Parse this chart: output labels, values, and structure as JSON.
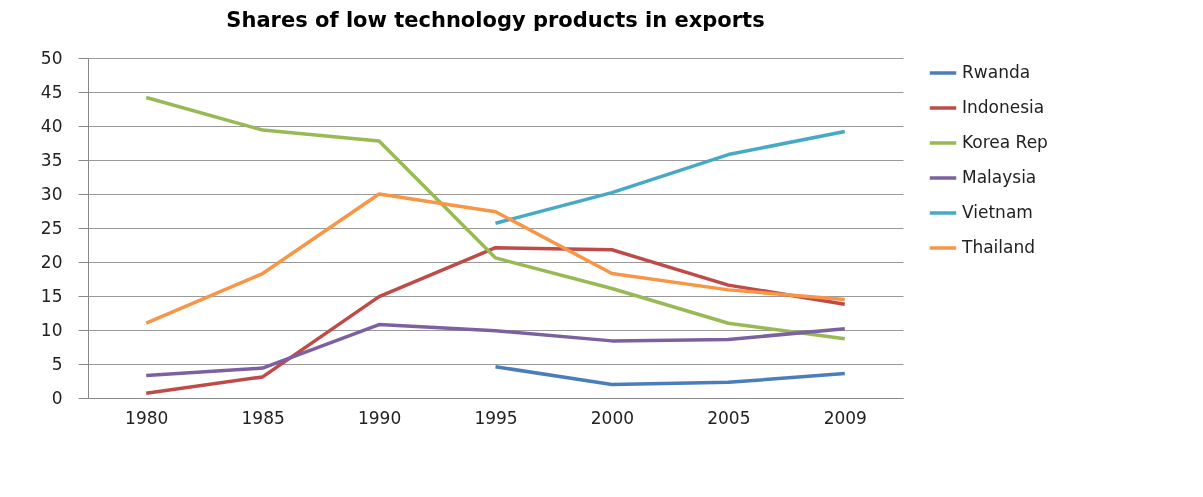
{
  "chart_data": {
    "type": "line",
    "title": "Shares of low technology products in exports",
    "categories": [
      "1980",
      "1985",
      "1990",
      "1995",
      "2000",
      "2005",
      "2009"
    ],
    "series": [
      {
        "name": "Rwanda",
        "color": "#4a7ebb",
        "values": [
          null,
          null,
          null,
          4.6,
          2.0,
          2.3,
          3.6
        ]
      },
      {
        "name": "Indonesia",
        "color": "#be4b48",
        "values": [
          0.7,
          3.1,
          14.9,
          22.1,
          21.8,
          16.6,
          13.8
        ]
      },
      {
        "name": "Korea Rep",
        "color": "#98b954",
        "values": [
          44.2,
          39.4,
          37.8,
          20.6,
          16.1,
          11.0,
          8.7
        ]
      },
      {
        "name": "Malaysia",
        "color": "#7d60a0",
        "values": [
          3.3,
          4.4,
          10.8,
          9.9,
          8.4,
          8.6,
          10.2
        ]
      },
      {
        "name": "Vietnam",
        "color": "#46aac5",
        "values": [
          null,
          null,
          null,
          25.7,
          30.2,
          35.8,
          39.2
        ]
      },
      {
        "name": "Thailand",
        "color": "#f79646",
        "values": [
          11.0,
          18.3,
          30.0,
          27.4,
          18.3,
          15.9,
          14.5
        ]
      }
    ],
    "ylim": [
      0,
      50
    ],
    "yticks": [
      0,
      5,
      10,
      15,
      20,
      25,
      30,
      35,
      40,
      45,
      50
    ],
    "grid": "y",
    "legend": "right",
    "marker": "none",
    "line_style": "solid"
  }
}
